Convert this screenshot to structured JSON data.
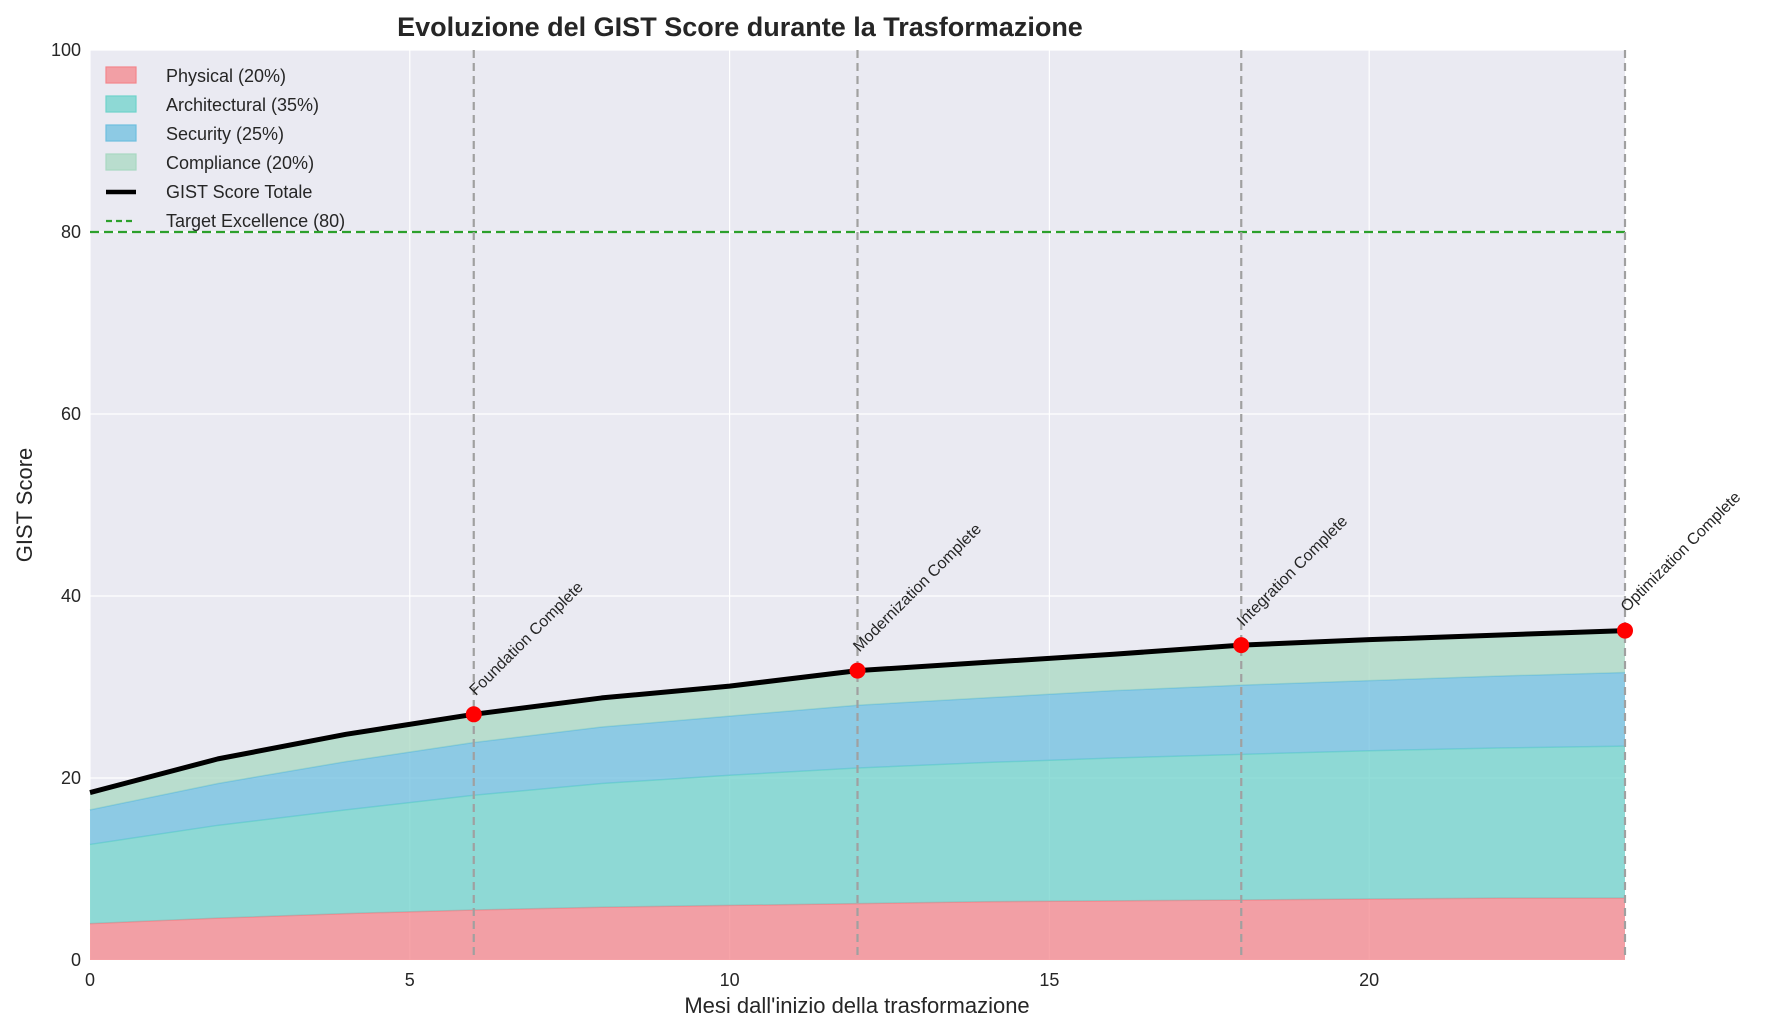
{
  "chart_data": {
    "type": "area",
    "title": "Evoluzione del GIST Score durante la Trasformazione",
    "xlabel": "Mesi dall'inizio della trasformazione",
    "ylabel": "GIST Score",
    "xlim": [
      0,
      24
    ],
    "ylim": [
      0,
      100
    ],
    "x_ticks": [
      0,
      5,
      10,
      15,
      20
    ],
    "y_ticks": [
      0,
      20,
      40,
      60,
      80,
      100
    ],
    "grid": true,
    "legend_position": "top-left",
    "stacked": true,
    "x": [
      0,
      2,
      4,
      6,
      8,
      10,
      12,
      14,
      16,
      18,
      20,
      22,
      24
    ],
    "series": [
      {
        "name": "Physical (20%)",
        "color": "#f4858b",
        "values": [
          4.0,
          4.6,
          5.1,
          5.5,
          5.8,
          6.0,
          6.2,
          6.4,
          6.5,
          6.6,
          6.7,
          6.8,
          6.8
        ]
      },
      {
        "name": "Architectural (35%)",
        "color": "#6fd3cb",
        "values": [
          8.7,
          10.2,
          11.4,
          12.6,
          13.6,
          14.3,
          14.9,
          15.3,
          15.7,
          16.0,
          16.3,
          16.5,
          16.7
        ]
      },
      {
        "name": "Security (25%)",
        "color": "#6ebfdf",
        "values": [
          3.8,
          4.6,
          5.3,
          5.8,
          6.2,
          6.5,
          6.9,
          7.1,
          7.4,
          7.6,
          7.7,
          7.9,
          8.1
        ]
      },
      {
        "name": "Compliance (20%)",
        "color": "#a8d8c2",
        "values": [
          1.9,
          2.7,
          3.0,
          3.1,
          3.2,
          3.3,
          3.8,
          3.9,
          4.0,
          4.4,
          4.5,
          4.5,
          4.6
        ]
      }
    ],
    "total_line": {
      "name": "GIST Score Totale",
      "color": "#000000",
      "values": [
        18.4,
        22.1,
        24.8,
        27.0,
        28.8,
        30.1,
        31.8,
        32.7,
        33.6,
        34.6,
        35.2,
        35.7,
        36.2
      ]
    },
    "target_line": {
      "name": "Target Excellence (80)",
      "value": 80,
      "color": "#2ca02c"
    },
    "milestones": [
      {
        "x": 6,
        "y": 27.0,
        "label": "Foundation Complete"
      },
      {
        "x": 12,
        "y": 31.8,
        "label": "Modernization Complete"
      },
      {
        "x": 18,
        "y": 34.6,
        "label": "Integration Complete"
      },
      {
        "x": 24,
        "y": 36.2,
        "label": "Optimization Complete"
      }
    ],
    "colors": {
      "plot_background": "#eaeaf2",
      "grid": "#ffffff",
      "milestone_marker": "#ff0000",
      "milestone_line": "#a0a0a0"
    }
  }
}
